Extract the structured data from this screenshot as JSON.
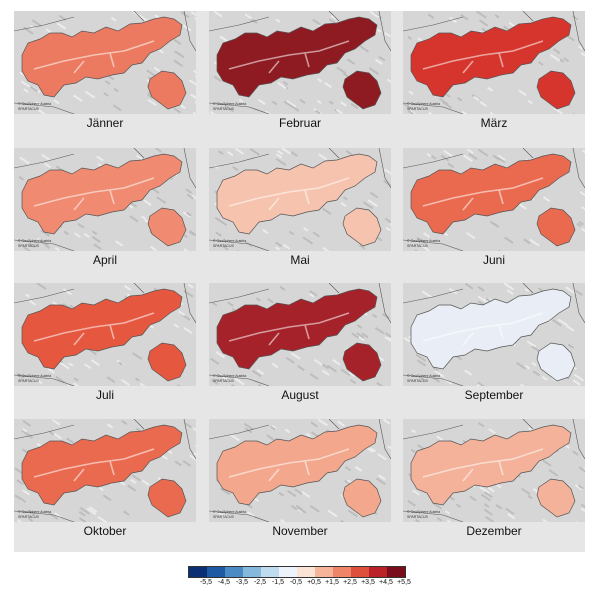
{
  "months": [
    {
      "name": "Jänner",
      "fill": "#ec7a60"
    },
    {
      "name": "Februar",
      "fill": "#8f1b22"
    },
    {
      "name": "März",
      "fill": "#d6352d"
    },
    {
      "name": "April",
      "fill": "#f08a70"
    },
    {
      "name": "Mai",
      "fill": "#f6c3ae"
    },
    {
      "name": "Juni",
      "fill": "#ea6a4f"
    },
    {
      "name": "Juli",
      "fill": "#e5573f"
    },
    {
      "name": "August",
      "fill": "#a6222a"
    },
    {
      "name": "September",
      "fill": "#e9eef6"
    },
    {
      "name": "Oktober",
      "fill": "#ea6a4f"
    },
    {
      "name": "November",
      "fill": "#f3a78c"
    },
    {
      "name": "Dezember",
      "fill": "#f4b29a"
    }
  ],
  "credit_line1": "© GeoSphere Austria",
  "credit_line2": "SPARTACUS",
  "legend": {
    "colors": [
      "#0b2f73",
      "#1d5aa3",
      "#4b8bc4",
      "#86b8dc",
      "#bfdcee",
      "#ecf3fa",
      "#fbe3d6",
      "#f6b49a",
      "#ef8568",
      "#de4f3c",
      "#bb2129",
      "#7a0d1b"
    ],
    "labels": [
      "-5,5",
      "-4,5",
      "-3,5",
      "-2,5",
      "-1,5",
      "-0,5",
      "+0,5",
      "+1,5",
      "+2,5",
      "+3,5",
      "+4,5",
      "+5,5"
    ]
  }
}
